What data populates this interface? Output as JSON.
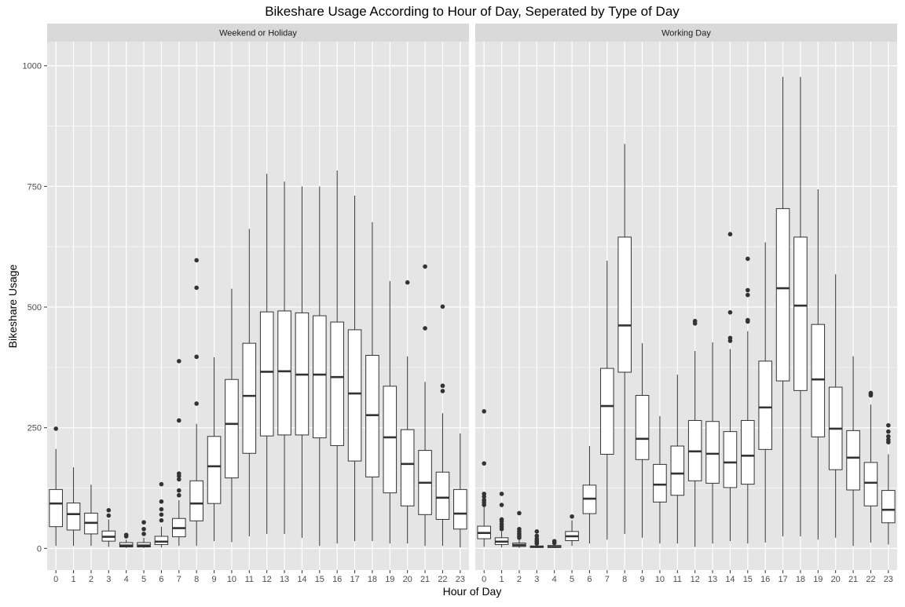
{
  "chart_data": {
    "type": "boxplot",
    "title": "Bikeshare Usage According to Hour of Day, Seperated by Type of Day",
    "xlabel": "Hour of Day",
    "ylabel": "Bikeshare Usage",
    "ylim": [
      -45,
      1050
    ],
    "yticks": [
      0,
      250,
      500,
      750,
      1000
    ],
    "categories": [
      "0",
      "1",
      "2",
      "3",
      "4",
      "5",
      "6",
      "7",
      "8",
      "9",
      "10",
      "11",
      "12",
      "13",
      "14",
      "15",
      "16",
      "17",
      "18",
      "19",
      "20",
      "21",
      "22",
      "23"
    ],
    "grid": true,
    "colors": {
      "panel_bg": "#e5e5e5",
      "strip_bg": "#d9d9d9",
      "grid": "#ffffff",
      "box_fill": "#ffffff",
      "line": "#333333"
    },
    "facets": [
      {
        "name": "Weekend or Holiday",
        "boxes": [
          {
            "hour": 0,
            "low": 5,
            "q1": 45,
            "median": 93,
            "q3": 122,
            "high": 206,
            "outliers": [
              248
            ]
          },
          {
            "hour": 1,
            "low": 5,
            "q1": 38,
            "median": 71,
            "q3": 94,
            "high": 168,
            "outliers": []
          },
          {
            "hour": 2,
            "low": 5,
            "q1": 30,
            "median": 53,
            "q3": 73,
            "high": 132,
            "outliers": []
          },
          {
            "hour": 3,
            "low": 3,
            "q1": 15,
            "median": 24,
            "q3": 36,
            "high": 60,
            "outliers": [
              68,
              79
            ]
          },
          {
            "hour": 4,
            "low": 1,
            "q1": 3,
            "median": 6,
            "q3": 12,
            "high": 18,
            "outliers": [
              25,
              28
            ]
          },
          {
            "hour": 5,
            "low": 1,
            "q1": 3,
            "median": 6,
            "q3": 12,
            "high": 22,
            "outliers": [
              30,
              40,
              54
            ]
          },
          {
            "hour": 6,
            "low": 2,
            "q1": 8,
            "median": 14,
            "q3": 25,
            "high": 45,
            "outliers": [
              58,
              70,
              81,
              97,
              133
            ]
          },
          {
            "hour": 7,
            "low": 5,
            "q1": 24,
            "median": 42,
            "q3": 62,
            "high": 100,
            "outliers": [
              110,
              120,
              143,
              150,
              155,
              265,
              388
            ]
          },
          {
            "hour": 8,
            "low": 5,
            "q1": 57,
            "median": 93,
            "q3": 140,
            "high": 258,
            "outliers": [
              300,
              397,
              540,
              597
            ]
          },
          {
            "hour": 9,
            "low": 15,
            "q1": 93,
            "median": 170,
            "q3": 232,
            "high": 396,
            "outliers": []
          },
          {
            "hour": 10,
            "low": 13,
            "q1": 146,
            "median": 258,
            "q3": 350,
            "high": 538,
            "outliers": []
          },
          {
            "hour": 11,
            "low": 25,
            "q1": 197,
            "median": 316,
            "q3": 425,
            "high": 662,
            "outliers": []
          },
          {
            "hour": 12,
            "low": 30,
            "q1": 233,
            "median": 366,
            "q3": 490,
            "high": 776,
            "outliers": []
          },
          {
            "hour": 13,
            "low": 30,
            "q1": 235,
            "median": 367,
            "q3": 492,
            "high": 760,
            "outliers": []
          },
          {
            "hour": 14,
            "low": 22,
            "q1": 235,
            "median": 360,
            "q3": 488,
            "high": 750,
            "outliers": []
          },
          {
            "hour": 15,
            "low": 5,
            "q1": 229,
            "median": 360,
            "q3": 482,
            "high": 750,
            "outliers": []
          },
          {
            "hour": 16,
            "low": 10,
            "q1": 213,
            "median": 355,
            "q3": 469,
            "high": 783,
            "outliers": []
          },
          {
            "hour": 17,
            "low": 15,
            "q1": 181,
            "median": 321,
            "q3": 453,
            "high": 731,
            "outliers": []
          },
          {
            "hour": 18,
            "low": 15,
            "q1": 148,
            "median": 276,
            "q3": 400,
            "high": 676,
            "outliers": []
          },
          {
            "hour": 19,
            "low": 10,
            "q1": 115,
            "median": 230,
            "q3": 336,
            "high": 554,
            "outliers": []
          },
          {
            "hour": 20,
            "low": 10,
            "q1": 88,
            "median": 175,
            "q3": 246,
            "high": 398,
            "outliers": [
              551
            ]
          },
          {
            "hour": 21,
            "low": 5,
            "q1": 70,
            "median": 136,
            "q3": 203,
            "high": 345,
            "outliers": [
              456,
              584
            ]
          },
          {
            "hour": 22,
            "low": 5,
            "q1": 60,
            "median": 105,
            "q3": 158,
            "high": 280,
            "outliers": [
              326,
              337,
              501
            ]
          },
          {
            "hour": 23,
            "low": 2,
            "q1": 40,
            "median": 72,
            "q3": 122,
            "high": 238,
            "outliers": []
          }
        ]
      },
      {
        "name": "Working Day",
        "boxes": [
          {
            "hour": 0,
            "low": 3,
            "q1": 20,
            "median": 32,
            "q3": 46,
            "high": 85,
            "outliers": [
              90,
              95,
              100,
              107,
              113,
              176,
              284
            ]
          },
          {
            "hour": 1,
            "low": 2,
            "q1": 8,
            "median": 14,
            "q3": 22,
            "high": 35,
            "outliers": [
              40,
              45,
              50,
              56,
              60,
              90,
              113
            ]
          },
          {
            "hour": 2,
            "low": 1,
            "q1": 4,
            "median": 7,
            "q3": 11,
            "high": 18,
            "outliers": [
              22,
              26,
              30,
              35,
              40,
              73
            ]
          },
          {
            "hour": 3,
            "low": 1,
            "q1": 2,
            "median": 3,
            "q3": 5,
            "high": 8,
            "outliers": [
              10,
              13,
              16,
              20,
              26,
              35
            ]
          },
          {
            "hour": 4,
            "low": 1,
            "q1": 2,
            "median": 3,
            "q3": 6,
            "high": 9,
            "outliers": [
              11,
              15
            ]
          },
          {
            "hour": 5,
            "low": 5,
            "q1": 16,
            "median": 25,
            "q3": 35,
            "high": 58,
            "outliers": [
              66
            ]
          },
          {
            "hour": 6,
            "low": 10,
            "q1": 72,
            "median": 103,
            "q3": 131,
            "high": 212,
            "outliers": []
          },
          {
            "hour": 7,
            "low": 18,
            "q1": 195,
            "median": 295,
            "q3": 373,
            "high": 596,
            "outliers": []
          },
          {
            "hour": 8,
            "low": 30,
            "q1": 365,
            "median": 462,
            "q3": 645,
            "high": 838,
            "outliers": []
          },
          {
            "hour": 9,
            "low": 22,
            "q1": 184,
            "median": 227,
            "q3": 317,
            "high": 425,
            "outliers": []
          },
          {
            "hour": 10,
            "low": 10,
            "q1": 96,
            "median": 132,
            "q3": 174,
            "high": 274,
            "outliers": []
          },
          {
            "hour": 11,
            "low": 10,
            "q1": 110,
            "median": 155,
            "q3": 212,
            "high": 360,
            "outliers": []
          },
          {
            "hour": 12,
            "low": 3,
            "q1": 140,
            "median": 201,
            "q3": 265,
            "high": 409,
            "outliers": [
              466,
              471
            ]
          },
          {
            "hour": 13,
            "low": 10,
            "q1": 135,
            "median": 196,
            "q3": 263,
            "high": 427,
            "outliers": []
          },
          {
            "hour": 14,
            "low": 15,
            "q1": 126,
            "median": 178,
            "q3": 242,
            "high": 413,
            "outliers": [
              430,
              436,
              489,
              651
            ]
          },
          {
            "hour": 15,
            "low": 10,
            "q1": 133,
            "median": 192,
            "q3": 265,
            "high": 450,
            "outliers": [
              470,
              473,
              525,
              535,
              600
            ]
          },
          {
            "hour": 16,
            "low": 12,
            "q1": 205,
            "median": 292,
            "q3": 388,
            "high": 634,
            "outliers": []
          },
          {
            "hour": 17,
            "low": 25,
            "q1": 347,
            "median": 539,
            "q3": 704,
            "high": 977,
            "outliers": []
          },
          {
            "hour": 18,
            "low": 25,
            "q1": 327,
            "median": 503,
            "q3": 645,
            "high": 977,
            "outliers": []
          },
          {
            "hour": 19,
            "low": 18,
            "q1": 231,
            "median": 350,
            "q3": 464,
            "high": 744,
            "outliers": []
          },
          {
            "hour": 20,
            "low": 22,
            "q1": 163,
            "median": 248,
            "q3": 334,
            "high": 568,
            "outliers": []
          },
          {
            "hour": 21,
            "low": 5,
            "q1": 121,
            "median": 188,
            "q3": 244,
            "high": 398,
            "outliers": []
          },
          {
            "hour": 22,
            "low": 12,
            "q1": 88,
            "median": 136,
            "q3": 178,
            "high": 298,
            "outliers": [
              317,
              320,
              322
            ]
          },
          {
            "hour": 23,
            "low": 8,
            "q1": 53,
            "median": 80,
            "q3": 120,
            "high": 195,
            "outliers": [
              220,
              225,
              232,
              242,
              255
            ]
          }
        ]
      }
    ]
  }
}
